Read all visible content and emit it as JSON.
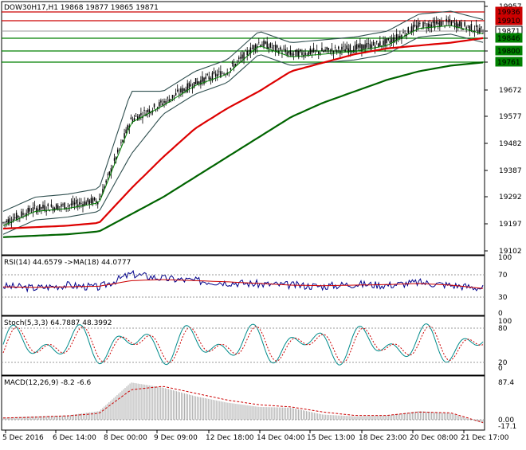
{
  "main": {
    "label": "DOW30H17,H1  19868 19877 19865 19871",
    "y_ticks": [
      "19957",
      "19871",
      "19846",
      "19800",
      "19761",
      "19672",
      "19577",
      "19482",
      "19387",
      "19292",
      "19197",
      "19102"
    ],
    "price_labels": [
      {
        "text": "19936",
        "color": "#cc0000"
      },
      {
        "text": "19910",
        "color": "#cc0000"
      },
      {
        "text": "19871",
        "color": "#ffffff"
      },
      {
        "text": "19846",
        "color": "#008000"
      },
      {
        "text": "19800",
        "color": "#008000"
      },
      {
        "text": "19761",
        "color": "#008000"
      }
    ]
  },
  "rsi": {
    "label": "RSI(14) 44.6579  ->MA(18) 44.0777",
    "y_ticks": [
      "100",
      "70",
      "30",
      "0"
    ]
  },
  "stoch": {
    "label": "Stoch(5,3,3) 64.7887 48.3992",
    "y_ticks": [
      "100",
      "80",
      "20",
      "0"
    ]
  },
  "macd": {
    "label": "MACD(12,26,9) -8.2 -6.6",
    "y_ticks": [
      "87.4",
      "0.00",
      "-17.1"
    ]
  },
  "x_ticks": [
    "5 Dec 2016",
    "6 Dec 14:00",
    "8 Dec 00:00",
    "9 Dec 09:00",
    "12 Dec 18:00",
    "14 Dec 04:00",
    "15 Dec 13:00",
    "18 Dec 23:00",
    "20 Dec 08:00",
    "21 Dec 17:00"
  ],
  "colors": {
    "candles": "#000000",
    "bollinger": "#2f4f4f",
    "ema_fast": "#008000",
    "ma_red": "#dd0000",
    "ma_green": "#006400",
    "rsi_line": "#00008b",
    "rsi_ma": "#cc0000",
    "stoch_main": "#008b8b",
    "stoch_signal": "#cc0000",
    "macd_hist": "#b0b0b0",
    "macd_signal": "#cc0000"
  },
  "chart_data": [
    {
      "type": "line",
      "title": "DOW30H17,H1",
      "ylim": [
        19102,
        19957
      ],
      "x": [
        0,
        40,
        80,
        120,
        160,
        200,
        240,
        280,
        320,
        360,
        400,
        440,
        480,
        520,
        560,
        600
      ],
      "series": [
        {
          "values": [
            19200,
            19250,
            19260,
            19280,
            19560,
            19620,
            19690,
            19730,
            19830,
            19790,
            19800,
            19810,
            19830,
            19890,
            19900,
            19871
          ]
        },
        {
          "values": [
            19180,
            19185,
            19190,
            19200,
            19320,
            19430,
            19530,
            19600,
            19660,
            19730,
            19760,
            19790,
            19810,
            19820,
            19830,
            19846
          ]
        },
        {
          "values": [
            19150,
            19155,
            19160,
            19170,
            19230,
            19290,
            19360,
            19430,
            19500,
            19570,
            19620,
            19660,
            19700,
            19730,
            19750,
            19761
          ]
        }
      ]
    },
    {
      "type": "line",
      "title": "RSI(14)",
      "ylim": [
        0,
        100
      ],
      "series": [
        {
          "values": [
            48,
            45,
            50,
            46,
            70,
            62,
            58,
            55,
            52,
            50,
            48,
            52,
            50,
            55,
            50,
            44.66
          ]
        },
        {
          "values": [
            47,
            46,
            47,
            48,
            58,
            60,
            58,
            56,
            53,
            50,
            49,
            50,
            51,
            53,
            50,
            44.08
          ]
        }
      ]
    },
    {
      "type": "line",
      "title": "Stoch(5,3,3)",
      "ylim": [
        0,
        100
      ],
      "series": [
        {
          "values": [
            60,
            20,
            80,
            30,
            85,
            25,
            75,
            20,
            80,
            40,
            85,
            20,
            70,
            25,
            15,
            64.79
          ]
        },
        {
          "values": [
            55,
            30,
            70,
            35,
            75,
            35,
            70,
            30,
            70,
            45,
            75,
            30,
            65,
            30,
            20,
            48.4
          ]
        }
      ]
    },
    {
      "type": "bar",
      "title": "MACD(12,26,9)",
      "ylim": [
        -17.1,
        87.4
      ],
      "series": [
        {
          "values": [
            5,
            8,
            10,
            20,
            87,
            75,
            55,
            40,
            30,
            28,
            12,
            8,
            10,
            20,
            15,
            -8.2
          ]
        },
        {
          "values": [
            4,
            6,
            9,
            15,
            70,
            78,
            62,
            46,
            35,
            30,
            18,
            10,
            10,
            18,
            16,
            -6.6
          ]
        }
      ]
    }
  ]
}
